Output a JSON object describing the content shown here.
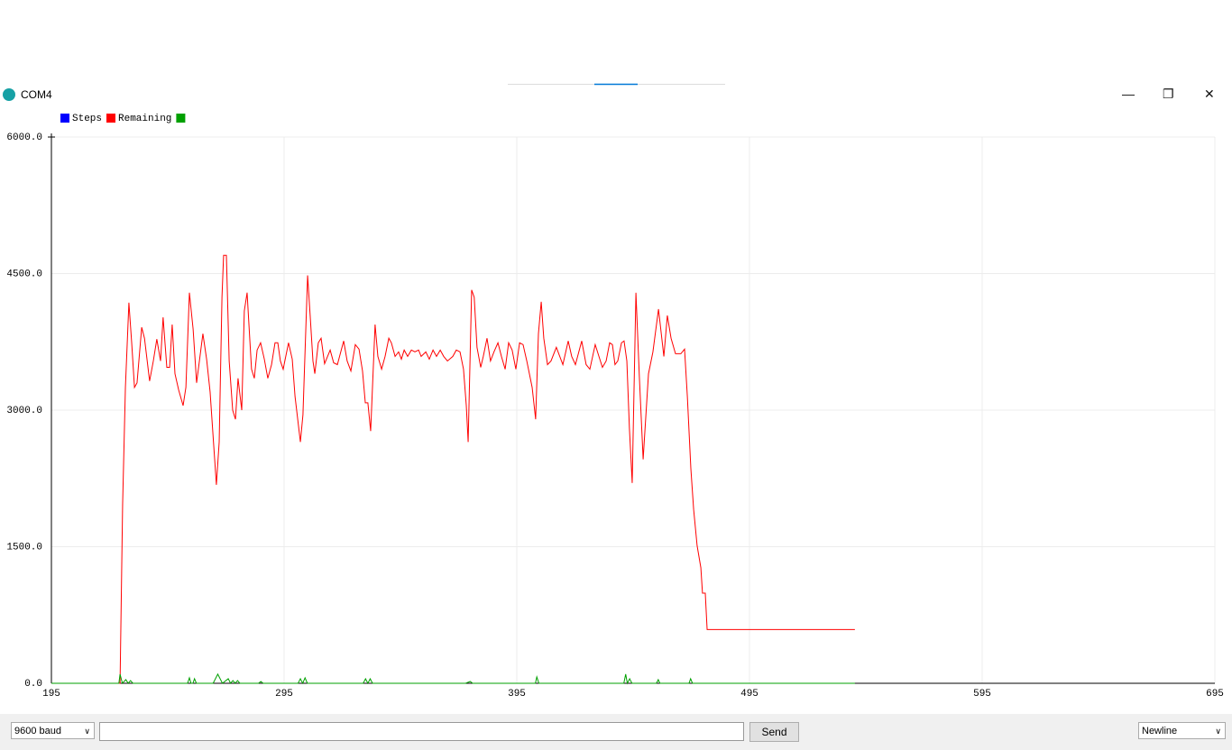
{
  "window": {
    "title": "COM4"
  },
  "chart_data": {
    "type": "line",
    "series": [
      {
        "name": "Steps",
        "color": "#0000ff",
        "x": [],
        "values": []
      },
      {
        "name": "Remaining",
        "color": "#ff0000",
        "x": [
          195,
          224.5,
          225.6,
          226.8,
          228.3,
          229.5,
          230.7,
          231.8,
          233.8,
          235,
          237.2,
          238.8,
          240.3,
          241.9,
          243,
          244.6,
          245.8,
          246.9,
          248.1,
          249.7,
          251.6,
          252.8,
          254.3,
          255.9,
          257.4,
          260.1,
          261.7,
          263.2,
          265.9,
          267.1,
          268.3,
          269,
          270.2,
          271.4,
          272.9,
          274.1,
          275.2,
          276.8,
          277.9,
          279.1,
          281,
          282.2,
          283.4,
          284.9,
          286.5,
          288,
          289.6,
          291.1,
          292.3,
          293.4,
          294.6,
          296.9,
          298.5,
          299.7,
          302,
          303.1,
          305.1,
          306.2,
          307.4,
          308.2,
          309.7,
          310.9,
          312.4,
          314.8,
          316.3,
          317.9,
          320.6,
          322.1,
          323.7,
          325.6,
          327.2,
          328.7,
          329.9,
          331,
          332.2,
          334.1,
          335.3,
          336.9,
          338.4,
          340,
          341.1,
          342.7,
          344.2,
          345.4,
          346.6,
          348.1,
          349.7,
          351.2,
          352.8,
          353.9,
          355.9,
          357.4,
          359,
          360.5,
          362.1,
          363.6,
          365.2,
          367.5,
          369,
          370.6,
          372.1,
          373.3,
          374.1,
          375.6,
          376.7,
          377.9,
          379.5,
          380.6,
          382.2,
          383.7,
          385.2,
          386.9,
          388.4,
          390,
          391.5,
          393,
          394.6,
          396.2,
          397.7,
          399.3,
          401.6,
          403.1,
          404.3,
          405.5,
          406.6,
          408.2,
          409.7,
          412,
          414.8,
          417.1,
          418.6,
          420.2,
          422.9,
          424.8,
          426.4,
          428.7,
          430.3,
          431.8,
          433.4,
          434.9,
          436.1,
          437.2,
          438.4,
          440,
          441.1,
          442.3,
          443.4,
          444.6,
          446.2,
          447.7,
          449.3,
          451.6,
          453.5,
          455.9,
          458.2,
          459.7,
          461.3,
          463.2,
          465.5,
          467.1,
          468.3,
          469.8,
          471,
          472.5,
          474.1,
          474.8,
          476,
          476.8,
          540.3
        ],
        "values": [
          0,
          0,
          1960,
          3250,
          4180,
          3740,
          3250,
          3300,
          3910,
          3790,
          3320,
          3540,
          3780,
          3540,
          4020,
          3470,
          3470,
          3940,
          3400,
          3220,
          3050,
          3250,
          4290,
          3890,
          3300,
          3840,
          3560,
          3200,
          2180,
          2650,
          4240,
          4700,
          4700,
          3540,
          3000,
          2900,
          3350,
          3000,
          4090,
          4290,
          3450,
          3350,
          3660,
          3740,
          3560,
          3350,
          3500,
          3740,
          3740,
          3540,
          3450,
          3740,
          3560,
          3150,
          2650,
          2950,
          4480,
          4040,
          3540,
          3400,
          3740,
          3790,
          3510,
          3660,
          3520,
          3500,
          3760,
          3540,
          3430,
          3720,
          3670,
          3430,
          3080,
          3080,
          2770,
          3940,
          3590,
          3450,
          3590,
          3790,
          3740,
          3590,
          3640,
          3560,
          3660,
          3590,
          3660,
          3640,
          3660,
          3590,
          3640,
          3560,
          3660,
          3590,
          3660,
          3590,
          3540,
          3590,
          3660,
          3640,
          3450,
          3050,
          2650,
          4320,
          4240,
          3690,
          3470,
          3590,
          3790,
          3540,
          3640,
          3740,
          3590,
          3450,
          3740,
          3660,
          3450,
          3740,
          3720,
          3540,
          3250,
          2900,
          3840,
          4190,
          3790,
          3500,
          3540,
          3690,
          3500,
          3760,
          3590,
          3500,
          3760,
          3500,
          3450,
          3720,
          3590,
          3470,
          3540,
          3740,
          3720,
          3500,
          3540,
          3740,
          3760,
          3540,
          2800,
          2200,
          4290,
          3350,
          2460,
          3400,
          3640,
          4110,
          3590,
          4040,
          3790,
          3620,
          3620,
          3670,
          3150,
          2360,
          1910,
          1510,
          1270,
          990,
          990,
          590,
          590
        ]
      },
      {
        "color": "#00a000",
        "x": [
          195,
          224,
          224.5,
          225.5,
          227,
          228,
          229,
          230,
          253.5,
          254.3,
          255,
          255.8,
          256.5,
          257.3,
          264.5,
          266.5,
          268.5,
          271,
          272,
          273,
          274,
          275,
          276,
          284,
          285,
          286,
          301,
          302,
          303,
          304,
          305,
          329,
          330,
          331,
          332,
          333,
          373,
          375,
          376,
          403,
          403.6,
          404.5,
          441,
          441.8,
          442.5,
          443.5,
          444.5,
          455,
          455.8,
          456.5,
          469,
          469.7,
          470.5,
          540.3
        ],
        "values": [
          0,
          0,
          100,
          0,
          40,
          0,
          30,
          0,
          0,
          60,
          0,
          0,
          50,
          0,
          0,
          100,
          0,
          50,
          0,
          30,
          0,
          30,
          0,
          0,
          20,
          0,
          0,
          50,
          0,
          60,
          0,
          0,
          50,
          0,
          50,
          0,
          0,
          20,
          0,
          0,
          70,
          0,
          0,
          100,
          0,
          50,
          0,
          0,
          40,
          0,
          0,
          50,
          0,
          0
        ]
      }
    ],
    "xlim": [
      195,
      695
    ],
    "xticks": [
      195,
      295,
      395,
      495,
      595,
      695
    ],
    "ylim": [
      0,
      6000
    ],
    "yticks": [
      {
        "value": 0,
        "label": "0.0"
      },
      {
        "value": 1500,
        "label": "1500.0"
      },
      {
        "value": 3000,
        "label": "3000.0"
      },
      {
        "value": 4500,
        "label": "4500.0"
      },
      {
        "value": 6000,
        "label": "6000.0"
      }
    ],
    "grid": true
  },
  "controls": {
    "baud": "9600 baud",
    "send": "Send",
    "line_ending": "Newline"
  }
}
